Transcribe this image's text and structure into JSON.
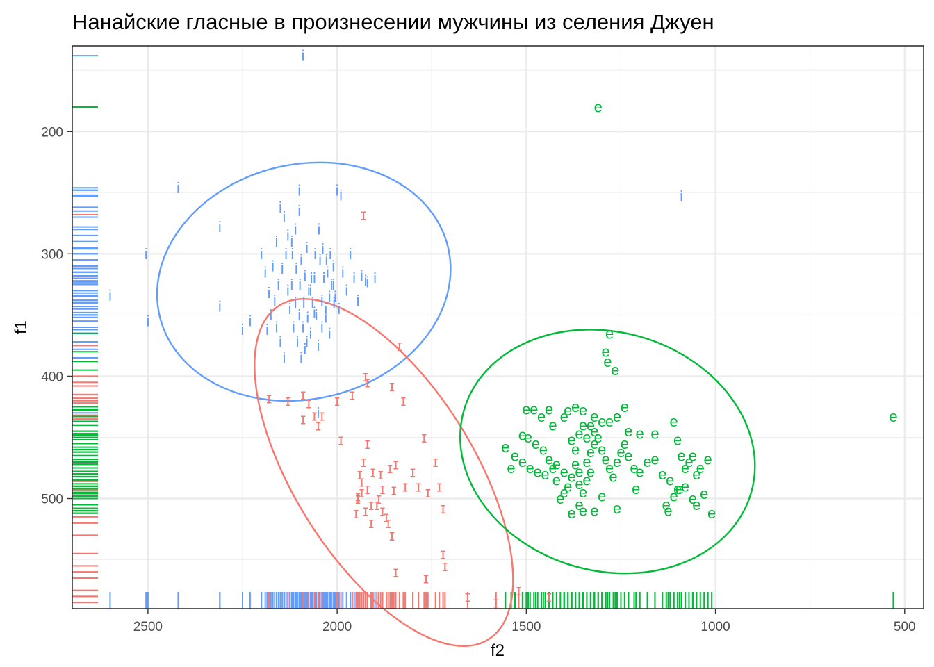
{
  "chart_data": {
    "type": "scatter",
    "title": "Нанайские гласные в произнесении мужчины из селения Джуен",
    "xlabel": "f2",
    "ylabel": "f1",
    "x_reversed": true,
    "y_reversed": true,
    "xlim": [
      2700,
      450
    ],
    "ylim": [
      130,
      590
    ],
    "x_ticks": [
      "2500",
      "2000",
      "1500",
      "1000",
      "500"
    ],
    "x_tick_values": [
      2500,
      2000,
      1500,
      1000,
      500
    ],
    "y_ticks": [
      "200",
      "300",
      "400",
      "500"
    ],
    "y_tick_values": [
      200,
      300,
      400,
      500
    ],
    "grid": true,
    "rug": true,
    "ellipses": true,
    "series": [
      {
        "label": "i",
        "color": "#619CFF",
        "points": [
          [
            2090,
            138
          ],
          [
            2420,
            246
          ],
          [
            2310,
            278
          ],
          [
            2100,
            248
          ],
          [
            2000,
            248
          ],
          [
            1990,
            252
          ],
          [
            2150,
            262
          ],
          [
            1090,
            253
          ],
          [
            2505,
            300
          ],
          [
            2500,
            355
          ],
          [
            2600,
            334
          ],
          [
            2310,
            343
          ],
          [
            2230,
            355
          ],
          [
            2250,
            362
          ],
          [
            2080,
            295
          ],
          [
            2050,
            430
          ],
          [
            1920,
            323
          ],
          [
            2100,
            265
          ],
          [
            2110,
            280
          ],
          [
            2120,
            290
          ],
          [
            2095,
            305
          ],
          [
            2085,
            318
          ],
          [
            2075,
            330
          ],
          [
            2065,
            340
          ],
          [
            2055,
            350
          ],
          [
            2045,
            305
          ],
          [
            2035,
            320
          ],
          [
            2025,
            315
          ],
          [
            2015,
            325
          ],
          [
            2005,
            335
          ],
          [
            1995,
            345
          ],
          [
            2135,
            300
          ],
          [
            2145,
            312
          ],
          [
            2155,
            325
          ],
          [
            2165,
            338
          ],
          [
            2175,
            350
          ],
          [
            2185,
            362
          ],
          [
            2125,
            345
          ],
          [
            2115,
            360
          ],
          [
            2105,
            372
          ],
          [
            2095,
            385
          ],
          [
            2085,
            378
          ],
          [
            2070,
            365
          ],
          [
            2060,
            348
          ],
          [
            2040,
            338
          ],
          [
            2030,
            352
          ],
          [
            2020,
            365
          ],
          [
            2010,
            310
          ],
          [
            1985,
            315
          ],
          [
            1975,
            330
          ],
          [
            1965,
            300
          ],
          [
            1955,
            320
          ],
          [
            1945,
            338
          ],
          [
            1935,
            318
          ],
          [
            1925,
            322
          ],
          [
            2200,
            300
          ],
          [
            2190,
            315
          ],
          [
            2180,
            332
          ],
          [
            2170,
            310
          ],
          [
            2160,
            290
          ],
          [
            2140,
            270
          ],
          [
            2130,
            285
          ],
          [
            2118,
            300
          ],
          [
            2108,
            312
          ],
          [
            2098,
            325
          ],
          [
            2088,
            340
          ],
          [
            2078,
            352
          ],
          [
            2068,
            320
          ],
          [
            2058,
            300
          ],
          [
            2048,
            280
          ],
          [
            2038,
            296
          ],
          [
            2028,
            305
          ],
          [
            2018,
            300
          ],
          [
            2008,
            340
          ],
          [
            2160,
            360
          ],
          [
            2150,
            372
          ],
          [
            2140,
            385
          ],
          [
            2130,
            330
          ],
          [
            2120,
            325
          ],
          [
            2110,
            340
          ],
          [
            2100,
            350
          ],
          [
            2090,
            360
          ],
          [
            2080,
            372
          ],
          [
            2070,
            330
          ],
          [
            2060,
            320
          ],
          [
            2050,
            375
          ],
          [
            2040,
            360
          ],
          [
            2030,
            345
          ],
          [
            2020,
            335
          ],
          [
            2010,
            325
          ],
          [
            1900,
            320
          ]
        ]
      },
      {
        "label": "ɪ",
        "color": "#F8766D",
        "points": [
          [
            1930,
            268
          ],
          [
            1835,
            375
          ],
          [
            1925,
            400
          ],
          [
            2180,
            418
          ],
          [
            2130,
            420
          ],
          [
            2090,
            415
          ],
          [
            2075,
            422
          ],
          [
            2060,
            432
          ],
          [
            2090,
            435
          ],
          [
            2050,
            440
          ],
          [
            2040,
            432
          ],
          [
            2000,
            420
          ],
          [
            1960,
            415
          ],
          [
            1920,
            405
          ],
          [
            1855,
            408
          ],
          [
            1825,
            420
          ],
          [
            1770,
            450
          ],
          [
            1740,
            470
          ],
          [
            1990,
            452
          ],
          [
            1920,
            455
          ],
          [
            1930,
            470
          ],
          [
            1905,
            478
          ],
          [
            1885,
            480
          ],
          [
            1860,
            475
          ],
          [
            1845,
            472
          ],
          [
            1880,
            492
          ],
          [
            1850,
            493
          ],
          [
            1820,
            490
          ],
          [
            1800,
            478
          ],
          [
            1785,
            490
          ],
          [
            1760,
            495
          ],
          [
            1730,
            490
          ],
          [
            1720,
            508
          ],
          [
            1940,
            480
          ],
          [
            1935,
            495
          ],
          [
            1945,
            500
          ],
          [
            1925,
            510
          ],
          [
            1910,
            505
          ],
          [
            1895,
            505
          ],
          [
            1880,
            510
          ],
          [
            1870,
            515
          ],
          [
            1950,
            512
          ],
          [
            1945,
            498
          ],
          [
            1935,
            486
          ],
          [
            1920,
            492
          ],
          [
            1910,
            520
          ],
          [
            1890,
            500
          ],
          [
            1865,
            520
          ],
          [
            1855,
            530
          ],
          [
            1845,
            560
          ],
          [
            1765,
            565
          ],
          [
            1655,
            580
          ],
          [
            1580,
            585
          ],
          [
            1440,
            580
          ],
          [
            1520,
            575
          ],
          [
            1720,
            545
          ],
          [
            1715,
            555
          ]
        ]
      },
      {
        "label": "e",
        "color": "#00BA38",
        "points": [
          [
            1310,
            180
          ],
          [
            1280,
            365
          ],
          [
            1290,
            380
          ],
          [
            1285,
            388
          ],
          [
            1265,
            395
          ],
          [
            1500,
            427
          ],
          [
            1480,
            427
          ],
          [
            1460,
            433
          ],
          [
            1440,
            427
          ],
          [
            1430,
            440
          ],
          [
            1400,
            433
          ],
          [
            1390,
            428
          ],
          [
            1370,
            425
          ],
          [
            1350,
            428
          ],
          [
            1320,
            433
          ],
          [
            1300,
            437
          ],
          [
            1280,
            437
          ],
          [
            1260,
            433
          ],
          [
            1240,
            425
          ],
          [
            1230,
            445
          ],
          [
            1200,
            447
          ],
          [
            1160,
            447
          ],
          [
            1110,
            437
          ],
          [
            1100,
            452
          ],
          [
            1090,
            465
          ],
          [
            1080,
            475
          ],
          [
            1070,
            470
          ],
          [
            1060,
            465
          ],
          [
            1050,
            480
          ],
          [
            1040,
            475
          ],
          [
            1020,
            468
          ],
          [
            530,
            433
          ],
          [
            1510,
            448
          ],
          [
            1495,
            450
          ],
          [
            1475,
            455
          ],
          [
            1455,
            460
          ],
          [
            1440,
            468
          ],
          [
            1420,
            472
          ],
          [
            1400,
            478
          ],
          [
            1380,
            482
          ],
          [
            1360,
            478
          ],
          [
            1340,
            470
          ],
          [
            1330,
            462
          ],
          [
            1320,
            455
          ],
          [
            1310,
            450
          ],
          [
            1300,
            460
          ],
          [
            1290,
            468
          ],
          [
            1280,
            475
          ],
          [
            1270,
            482
          ],
          [
            1260,
            470
          ],
          [
            1250,
            462
          ],
          [
            1240,
            455
          ],
          [
            1230,
            465
          ],
          [
            1215,
            475
          ],
          [
            1200,
            478
          ],
          [
            1180,
            470
          ],
          [
            1160,
            468
          ],
          [
            1140,
            480
          ],
          [
            1120,
            485
          ],
          [
            1100,
            492
          ],
          [
            1080,
            490
          ],
          [
            1060,
            500
          ],
          [
            1050,
            505
          ],
          [
            1030,
            496
          ],
          [
            1010,
            512
          ],
          [
            1380,
            452
          ],
          [
            1370,
            460
          ],
          [
            1360,
            447
          ],
          [
            1350,
            440
          ],
          [
            1340,
            450
          ],
          [
            1330,
            440
          ],
          [
            1320,
            445
          ],
          [
            1370,
            472
          ],
          [
            1360,
            488
          ],
          [
            1350,
            495
          ],
          [
            1340,
            485
          ],
          [
            1330,
            478
          ],
          [
            1390,
            490
          ],
          [
            1400,
            495
          ],
          [
            1410,
            500
          ],
          [
            1420,
            485
          ],
          [
            1430,
            475
          ],
          [
            1450,
            480
          ],
          [
            1470,
            478
          ],
          [
            1490,
            475
          ],
          [
            1510,
            470
          ],
          [
            1530,
            465
          ],
          [
            1555,
            458
          ],
          [
            1540,
            475
          ],
          [
            1380,
            512
          ],
          [
            1360,
            505
          ],
          [
            1350,
            510
          ],
          [
            1320,
            510
          ],
          [
            1300,
            498
          ],
          [
            1260,
            508
          ],
          [
            1210,
            492
          ],
          [
            1130,
            505
          ],
          [
            1125,
            510
          ],
          [
            1110,
            498
          ],
          [
            1095,
            492
          ]
        ]
      }
    ]
  }
}
